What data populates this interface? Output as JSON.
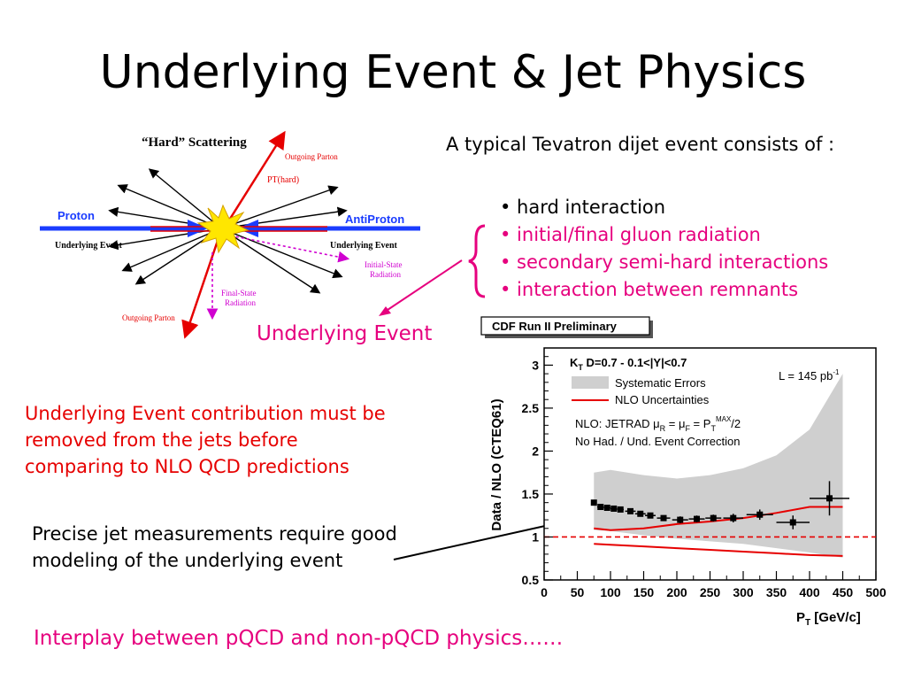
{
  "slide": {
    "title": "Underlying Event & Jet Physics",
    "intro": "A typical Tevatron dijet event consists of :",
    "bullets": [
      "• hard interaction",
      "• initial/final gluon radiation",
      "• secondary semi-hard interactions",
      "• interaction between remnants"
    ],
    "underlying_event_label": "Underlying Event",
    "ue_note": [
      "Underlying Event contribution must be",
      "removed from the jets before",
      "comparing to NLO QCD predictions"
    ],
    "jet_note": [
      "Precise jet measurements require good",
      "modeling of the underlying event"
    ],
    "footer": "Interplay between pQCD and non-pQCD physics……",
    "colors": {
      "accent_pink": "#e6007e",
      "accent_red": "#e60000",
      "arrow_blue": "#1a3cff"
    }
  },
  "diagram": {
    "title": "“Hard” Scattering",
    "outgoing_parton_top": "Outgoing Parton",
    "pt_hard": "PT(hard)",
    "proton": "Proton",
    "antiproton": "AntiProton",
    "ue_left": "Underlying Event",
    "ue_right": "Underlying Event",
    "isr_line1": "Initial-State",
    "isr_line2": "Radiation",
    "fsr_line1": "Final-State",
    "fsr_line2": "Radiation",
    "outgoing_parton_bottom": "Outgoing Parton"
  },
  "chart_data": {
    "type": "scatter",
    "banner": "CDF Run II Preliminary",
    "ylabel": "Data / NLO (CTEQ61)",
    "xlabel_main": "P",
    "xlabel_sub": "T",
    "xlabel_rest": " [GeV/c]",
    "xlim": [
      0,
      500
    ],
    "ylim": [
      0.5,
      3.2
    ],
    "xticks": [
      0,
      50,
      100,
      150,
      200,
      250,
      300,
      350,
      400,
      450,
      500
    ],
    "yticks": [
      0.5,
      1,
      1.5,
      2,
      2.5,
      3
    ],
    "ytick_labels": [
      "0.5",
      "1",
      "1.5",
      "2",
      "2.5",
      "3"
    ],
    "legend": {
      "heading": "K_T D=0.7 - 0.1<|Y|<0.7",
      "heading_main": "K",
      "heading_sub": "T",
      "heading_rest": " D=0.7 - 0.1<|Y|<0.7",
      "systematic": "Systematic Errors",
      "nlo": "NLO Uncertainties",
      "lumi_main": "L = 145 pb",
      "lumi_sup": "-1",
      "nlo_info_1": "NLO: JETRAD  μ",
      "nlo_info_1_sub1": "R",
      "nlo_info_1_mid": " = μ",
      "nlo_info_1_sub2": "F",
      "nlo_info_1_mid2": " = P",
      "nlo_info_1_sub3": "T",
      "nlo_info_1_sup": "MAX",
      "nlo_info_1_end": "/2",
      "nlo_info_2": "No Had. / Und. Event Correction"
    },
    "reference_line": 1.0,
    "points": [
      {
        "x": 75,
        "y": 1.4,
        "xerr": 3,
        "yerr": 0.03
      },
      {
        "x": 85,
        "y": 1.35,
        "xerr": 5,
        "yerr": 0.03
      },
      {
        "x": 95,
        "y": 1.34,
        "xerr": 5,
        "yerr": 0.03
      },
      {
        "x": 105,
        "y": 1.33,
        "xerr": 5,
        "yerr": 0.03
      },
      {
        "x": 115,
        "y": 1.32,
        "xerr": 5,
        "yerr": 0.03
      },
      {
        "x": 130,
        "y": 1.3,
        "xerr": 8,
        "yerr": 0.03
      },
      {
        "x": 145,
        "y": 1.27,
        "xerr": 8,
        "yerr": 0.03
      },
      {
        "x": 160,
        "y": 1.25,
        "xerr": 8,
        "yerr": 0.03
      },
      {
        "x": 180,
        "y": 1.22,
        "xerr": 10,
        "yerr": 0.03
      },
      {
        "x": 205,
        "y": 1.2,
        "xerr": 12,
        "yerr": 0.04
      },
      {
        "x": 230,
        "y": 1.21,
        "xerr": 12,
        "yerr": 0.04
      },
      {
        "x": 255,
        "y": 1.22,
        "xerr": 12,
        "yerr": 0.04
      },
      {
        "x": 285,
        "y": 1.22,
        "xerr": 15,
        "yerr": 0.05
      },
      {
        "x": 325,
        "y": 1.26,
        "xerr": 20,
        "yerr": 0.06
      },
      {
        "x": 375,
        "y": 1.17,
        "xerr": 25,
        "yerr": 0.08
      },
      {
        "x": 430,
        "y": 1.45,
        "xerr": 30,
        "yerr": 0.2
      }
    ],
    "systematic_band": {
      "x": [
        75,
        100,
        150,
        200,
        250,
        300,
        350,
        400,
        450
      ],
      "upper": [
        1.75,
        1.78,
        1.72,
        1.68,
        1.72,
        1.8,
        1.95,
        2.25,
        2.9
      ],
      "lower": [
        1.08,
        1.07,
        1.02,
        0.98,
        0.95,
        0.92,
        0.87,
        0.82,
        0.76
      ]
    },
    "nlo_upper": {
      "x": [
        75,
        100,
        150,
        200,
        250,
        300,
        350,
        400,
        450
      ],
      "y": [
        1.1,
        1.08,
        1.1,
        1.15,
        1.18,
        1.22,
        1.28,
        1.35,
        1.35
      ]
    },
    "nlo_lower": {
      "x": [
        75,
        100,
        150,
        200,
        250,
        300,
        350,
        400,
        450
      ],
      "y": [
        0.92,
        0.91,
        0.89,
        0.87,
        0.85,
        0.83,
        0.81,
        0.79,
        0.78
      ]
    }
  }
}
